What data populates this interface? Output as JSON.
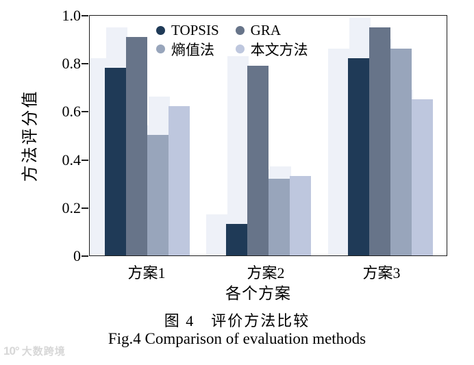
{
  "chart_data": {
    "type": "bar",
    "categories": [
      "方案1",
      "方案2",
      "方案3"
    ],
    "series": [
      {
        "name": "TOPSIS",
        "color": "#1f3a57",
        "values": [
          0.78,
          0.13,
          0.82
        ]
      },
      {
        "name": "GRA",
        "color": "#677489",
        "values": [
          0.91,
          0.79,
          0.95
        ]
      },
      {
        "name": "熵值法",
        "color": "#98a5bb",
        "values": [
          0.5,
          0.32,
          0.86
        ]
      },
      {
        "name": "本文方法",
        "color": "#bec7de",
        "values": [
          0.62,
          0.33,
          0.65
        ]
      }
    ],
    "title": "",
    "xlabel": "各个方案",
    "ylabel": "方法评分值",
    "ylim": [
      0,
      1.0
    ],
    "yticks": [
      0,
      0.2,
      0.4,
      0.6,
      0.8,
      1.0
    ],
    "ytick_labels": [
      "0",
      "0.2",
      "0.4",
      "0.6",
      "0.8",
      "1.0"
    ],
    "grid": false,
    "legend_position": "top-center-inside",
    "frame": "full-box",
    "ghost_shadow_color": "#eef1f8"
  },
  "caption": {
    "zh": "图 4　评价方法比较",
    "en": "Fig.4 Comparison of evaluation methods"
  },
  "watermark": {
    "logo": "10°",
    "text": "大数跨境"
  }
}
